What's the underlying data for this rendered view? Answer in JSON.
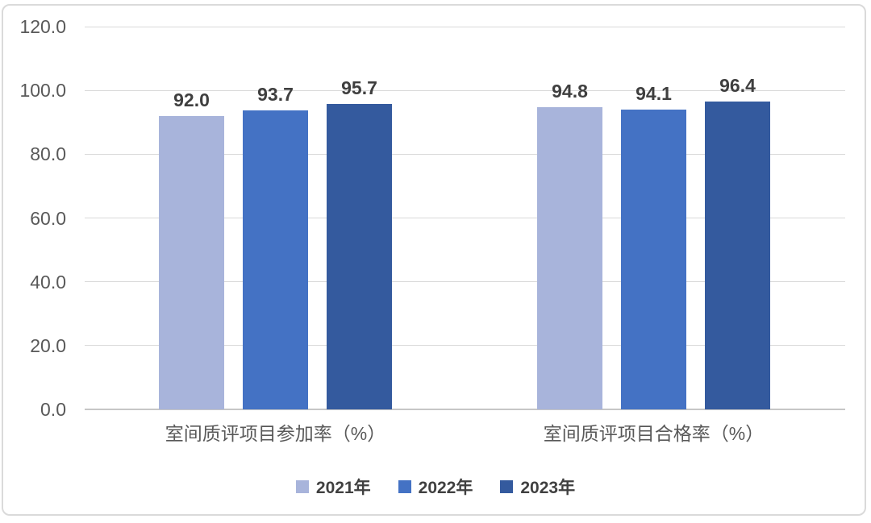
{
  "chart_data": {
    "type": "bar",
    "title": "",
    "categories": [
      "室间质评项目参加率（%）",
      "室间质评项目合格率（%）"
    ],
    "series": [
      {
        "name": "2021年",
        "color": "#A8B4DB",
        "values": [
          92.0,
          94.8
        ]
      },
      {
        "name": "2022年",
        "color": "#4472C4",
        "values": [
          93.7,
          94.1
        ]
      },
      {
        "name": "2023年",
        "color": "#345A9E",
        "values": [
          95.7,
          96.4
        ]
      }
    ],
    "ylim": [
      0,
      120
    ],
    "ytick_step": 20,
    "ytick_labels": [
      "0.0",
      "20.0",
      "40.0",
      "60.0",
      "80.0",
      "100.0",
      "120.0"
    ],
    "value_label_decimals": 1,
    "grid": true,
    "legend_position": "bottom"
  },
  "style": {
    "gridline_color": "#d9d9d9",
    "baseline_color": "#c6c6c6",
    "tick_text_color": "#595959",
    "value_text_color": "#3f3f3f",
    "legend_text_color": "#404040",
    "frame_border_color": "#dadada"
  }
}
